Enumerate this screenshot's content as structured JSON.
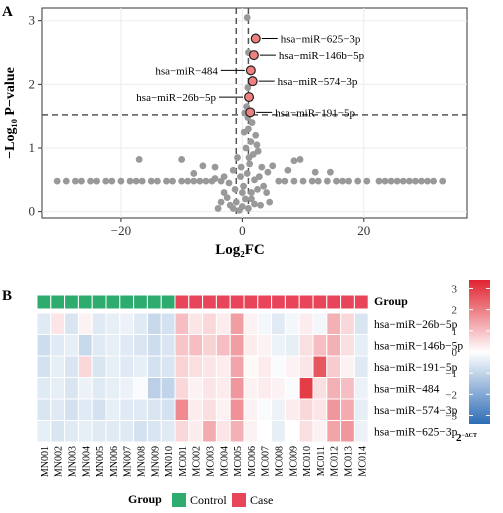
{
  "figure": {
    "panel_a_label": "A",
    "panel_b_label": "B"
  },
  "chart_data": [
    {
      "type": "scatter",
      "panel": "A",
      "xlabel": "Log₂FC",
      "ylabel": "−Log₁₀ P−value",
      "xlim": [
        -33,
        37
      ],
      "ylim": [
        -0.1,
        3.2
      ],
      "xticks": [
        "−20",
        "0",
        "20"
      ],
      "xtick_values": [
        -20,
        0,
        20
      ],
      "yticks": [
        "0",
        "1",
        "2",
        "3"
      ],
      "ytick_values": [
        0,
        1,
        2,
        3
      ],
      "grid": true,
      "threshold_lines": {
        "log2fc": [
          -1,
          1
        ],
        "neg_log10_p": 1.52
      },
      "colors": {
        "background_points": "#999999",
        "highlight_fill": "#f08080",
        "highlight_stroke": "#222222",
        "panel_background": "#ffffff",
        "grid": "#ebebeb"
      },
      "highlighted": [
        {
          "label": "hsa−miR−625−3p",
          "x": 2.2,
          "y": 2.72
        },
        {
          "label": "hsa−miR−146b−5p",
          "x": 1.9,
          "y": 2.46
        },
        {
          "label": "hsa−miR−484",
          "x": 1.4,
          "y": 2.22
        },
        {
          "label": "hsa−miR−574−3p",
          "x": 1.7,
          "y": 2.05
        },
        {
          "label": "hsa−miR−26b−5p",
          "x": 1.1,
          "y": 1.8
        },
        {
          "label": "hsa−miR−191−5p",
          "x": 1.3,
          "y": 1.56
        }
      ],
      "background_points": [
        [
          -30.5,
          0.48
        ],
        [
          -29,
          0.48
        ],
        [
          -27.5,
          0.48
        ],
        [
          -26.5,
          0.48
        ],
        [
          -25,
          0.48
        ],
        [
          -24,
          0.48
        ],
        [
          -22.5,
          0.48
        ],
        [
          -21.5,
          0.48
        ],
        [
          -20,
          0.48
        ],
        [
          -18.5,
          0.48
        ],
        [
          -17.5,
          0.48
        ],
        [
          -16.5,
          0.48
        ],
        [
          -15,
          0.48
        ],
        [
          -14,
          0.48
        ],
        [
          -12.5,
          0.48
        ],
        [
          -11.5,
          0.48
        ],
        [
          -10,
          0.48
        ],
        [
          -9,
          0.48
        ],
        [
          -8,
          0.48
        ],
        [
          -7,
          0.48
        ],
        [
          -6,
          0.48
        ],
        [
          -5,
          0.48
        ],
        [
          -4.5,
          0.52
        ],
        [
          -3.5,
          0.48
        ],
        [
          -3,
          0.55
        ],
        [
          6,
          0.48
        ],
        [
          7,
          0.48
        ],
        [
          8.5,
          0.48
        ],
        [
          10,
          0.48
        ],
        [
          11.5,
          0.48
        ],
        [
          12.5,
          0.48
        ],
        [
          14,
          0.48
        ],
        [
          15.5,
          0.48
        ],
        [
          16.5,
          0.48
        ],
        [
          17.5,
          0.48
        ],
        [
          19,
          0.48
        ],
        [
          20.5,
          0.48
        ],
        [
          22.5,
          0.48
        ],
        [
          23.5,
          0.48
        ],
        [
          24.5,
          0.48
        ],
        [
          25.5,
          0.48
        ],
        [
          26.5,
          0.48
        ],
        [
          27.5,
          0.48
        ],
        [
          28.5,
          0.48
        ],
        [
          29.5,
          0.48
        ],
        [
          30.5,
          0.48
        ],
        [
          31.5,
          0.48
        ],
        [
          33,
          0.48
        ],
        [
          -17,
          0.82
        ],
        [
          -10,
          0.82
        ],
        [
          -6.5,
          0.72
        ],
        [
          -4.5,
          0.7
        ],
        [
          -8,
          0.6
        ],
        [
          5,
          0.72
        ],
        [
          7.5,
          0.65
        ],
        [
          8.5,
          0.8
        ],
        [
          9.5,
          0.82
        ],
        [
          12,
          0.62
        ],
        [
          14.5,
          0.62
        ],
        [
          -2,
          0.1
        ],
        [
          -1.5,
          0.05
        ],
        [
          -1,
          0.15
        ],
        [
          -0.5,
          0.02
        ],
        [
          0,
          0.08
        ],
        [
          0.5,
          0.2
        ],
        [
          1,
          0.05
        ],
        [
          1.5,
          0.3
        ],
        [
          2,
          0.12
        ],
        [
          -2.5,
          0.22
        ],
        [
          2.5,
          0.35
        ],
        [
          3,
          0.1
        ],
        [
          -3,
          0.3
        ],
        [
          0.2,
          0.4
        ],
        [
          -0.3,
          0.55
        ],
        [
          0.8,
          0.6
        ],
        [
          1.2,
          0.75
        ],
        [
          1.8,
          0.9
        ],
        [
          0.6,
          1.0
        ],
        [
          1.4,
          1.1
        ],
        [
          2.2,
          1.2
        ],
        [
          1.0,
          1.3
        ],
        [
          1.6,
          1.4
        ],
        [
          0.9,
          1.48
        ],
        [
          2.6,
          0.95
        ],
        [
          3.2,
          0.7
        ],
        [
          -0.8,
          0.85
        ],
        [
          -1.5,
          0.65
        ],
        [
          0.3,
          1.25
        ],
        [
          2.0,
          0.5
        ],
        [
          1.1,
          0.85
        ],
        [
          0.0,
          0.3
        ],
        [
          -2.2,
          0.45
        ],
        [
          2.8,
          0.55
        ],
        [
          0.4,
          1.55
        ],
        [
          0.7,
          1.65
        ],
        [
          0.9,
          1.95
        ],
        [
          1.0,
          2.5
        ],
        [
          0.8,
          3.05
        ],
        [
          3.5,
          0.4
        ],
        [
          4,
          0.3
        ],
        [
          -3.5,
          0.15
        ],
        [
          4.5,
          0.15
        ],
        [
          -4,
          0.05
        ],
        [
          4.2,
          0.62
        ],
        [
          2.4,
          1.05
        ],
        [
          1.5,
          0.2
        ],
        [
          -1.2,
          0.35
        ],
        [
          -0.2,
          0.7
        ]
      ]
    },
    {
      "type": "heatmap",
      "panel": "B",
      "rows": [
        "hsa−miR−26b−5p",
        "hsa−miR−146b−5p",
        "hsa−miR−191−5p",
        "hsa−miR−484",
        "hsa−miR−574−3p",
        "hsa−miR−625−3p"
      ],
      "columns": [
        "MN001",
        "MN002",
        "MN003",
        "MN004",
        "MN005",
        "MN006",
        "MN007",
        "MN008",
        "MN009",
        "MN010",
        "MC001",
        "MC002",
        "MC003",
        "MC004",
        "MC005",
        "MC006",
        "MC007",
        "MC008",
        "MC009",
        "MC010",
        "MC011",
        "MC012",
        "MC013",
        "MC014"
      ],
      "column_groups": [
        "Control",
        "Control",
        "Control",
        "Control",
        "Control",
        "Control",
        "Control",
        "Control",
        "Control",
        "Control",
        "Case",
        "Case",
        "Case",
        "Case",
        "Case",
        "Case",
        "Case",
        "Case",
        "Case",
        "Case",
        "Case",
        "Case",
        "Case",
        "Case"
      ],
      "values": [
        [
          -0.5,
          0.4,
          -0.6,
          0.2,
          -0.5,
          -0.4,
          -0.3,
          -0.5,
          -0.9,
          -0.7,
          1.0,
          0.4,
          0.6,
          0.3,
          1.5,
          0.2,
          -0.2,
          -0.5,
          -0.2,
          0.3,
          -0.2,
          1.2,
          0.6,
          -0.6
        ],
        [
          -0.8,
          -0.5,
          -0.4,
          -0.9,
          -0.5,
          -0.4,
          -0.5,
          -0.6,
          -0.8,
          -0.6,
          0.9,
          1.0,
          0.7,
          1.0,
          1.5,
          0.3,
          0.2,
          -0.3,
          -0.4,
          0.5,
          1.0,
          1.2,
          0.5,
          -0.4
        ],
        [
          -0.7,
          -0.4,
          -0.6,
          0.6,
          -0.6,
          -0.4,
          -0.5,
          -0.4,
          -0.7,
          -0.6,
          0.7,
          0.5,
          0.4,
          0.3,
          1.4,
          0.1,
          0.3,
          -0.1,
          0.2,
          0.4,
          2.6,
          0.8,
          0.2,
          -0.5
        ],
        [
          -0.5,
          -0.4,
          -0.6,
          -0.3,
          -0.5,
          -0.4,
          -0.3,
          -0.1,
          -1.1,
          -1.0,
          0.6,
          0.2,
          0.4,
          0.3,
          1.6,
          0.2,
          0.3,
          0.2,
          -0.1,
          3.0,
          0.5,
          1.2,
          1.0,
          -0.3
        ],
        [
          -0.6,
          -0.5,
          -0.7,
          -0.5,
          -0.7,
          -0.4,
          -0.5,
          -0.5,
          -0.6,
          -0.7,
          1.8,
          0.3,
          0.5,
          0.2,
          1.7,
          0.2,
          -0.1,
          -0.3,
          0.3,
          0.6,
          0.4,
          1.6,
          1.3,
          -0.4
        ],
        [
          -0.4,
          -0.6,
          -0.5,
          -0.4,
          -0.5,
          -0.5,
          -0.5,
          -0.7,
          -0.6,
          -0.5,
          0.6,
          0.3,
          1.3,
          0.4,
          1.2,
          0.2,
          0.0,
          -0.4,
          0.0,
          0.5,
          0.2,
          1.4,
          1.6,
          -0.3
        ]
      ],
      "group_label": "Group",
      "legend": {
        "group_title": "Group",
        "groups": [
          {
            "name": "Control",
            "color": "#2eab6e"
          },
          {
            "name": "Case",
            "color": "#e8455a"
          }
        ],
        "colorbar_ticks": [
          "3",
          "2",
          "1",
          "0",
          "−1",
          "−2",
          "−3"
        ],
        "colorbar_tick_values": [
          3,
          2,
          1,
          0,
          -1,
          -2,
          -3
        ],
        "colorbar_title": "2",
        "colorbar_title_sup": "−ΔCT",
        "range": [
          -3.4,
          3.4
        ],
        "colors": {
          "low": "#2e6db5",
          "mid": "#ffffff",
          "high": "#e0232e"
        }
      }
    }
  ]
}
